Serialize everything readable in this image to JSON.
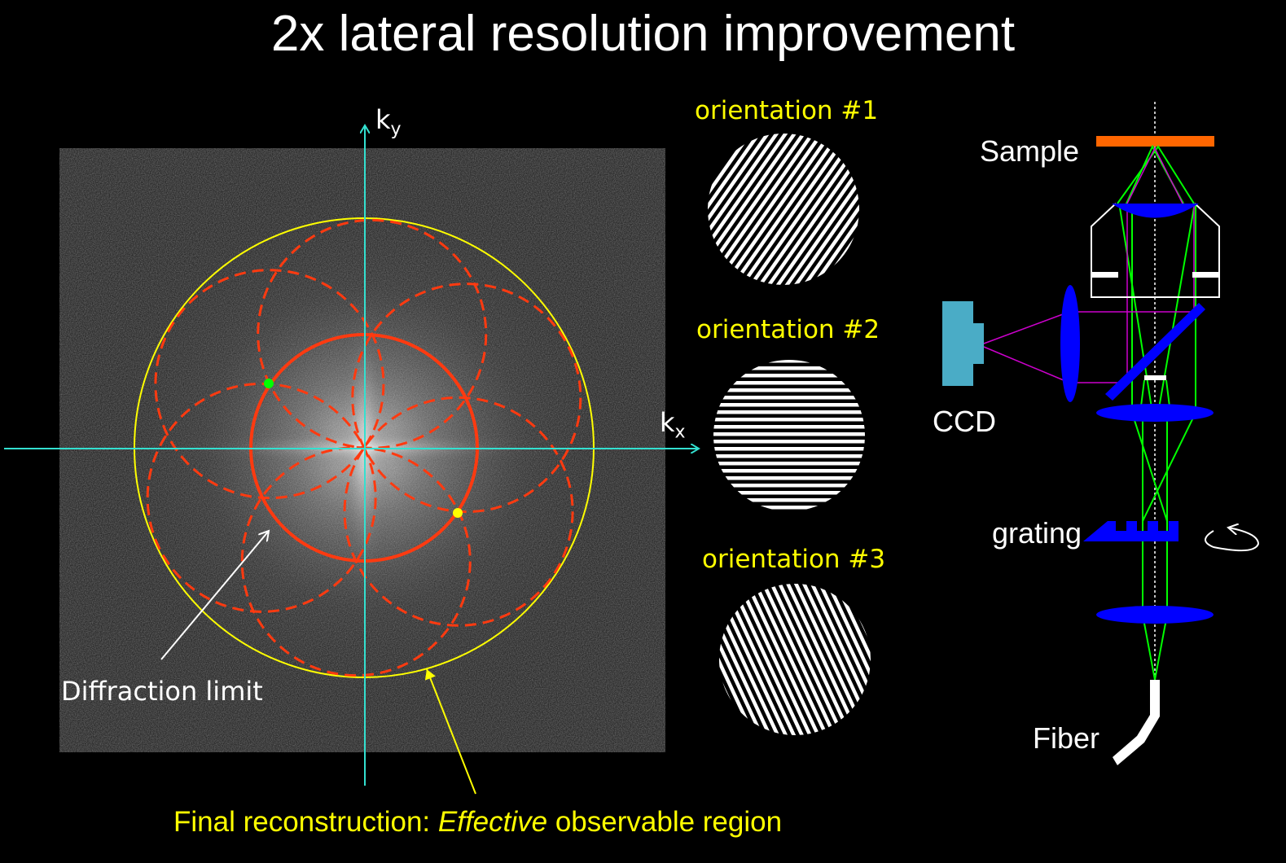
{
  "title": "2x lateral resolution improvement",
  "fourier": {
    "ky_label": "k",
    "ky_sub": "y",
    "kx_label": "k",
    "kx_sub": "x",
    "diffraction_label": "Diffraction limit",
    "caption_prefix": "Final reconstruction: ",
    "caption_em": "Effective",
    "caption_suffix": " observable region"
  },
  "orientations": [
    "orientation #1",
    "orientation #2",
    "orientation #3"
  ],
  "setup": {
    "sample": "Sample",
    "ccd": "CCD",
    "grating": "grating",
    "fiber": "Fiber"
  },
  "colors": {
    "axis": "#33e0d0",
    "limit": "#ff3a10",
    "effective": "#ffff00",
    "lens": "#0000ff",
    "sample": "#ff6600",
    "ccd": "#4aacc6",
    "beam_green": "#00ff00",
    "beam_magenta": "#cc00cc"
  }
}
